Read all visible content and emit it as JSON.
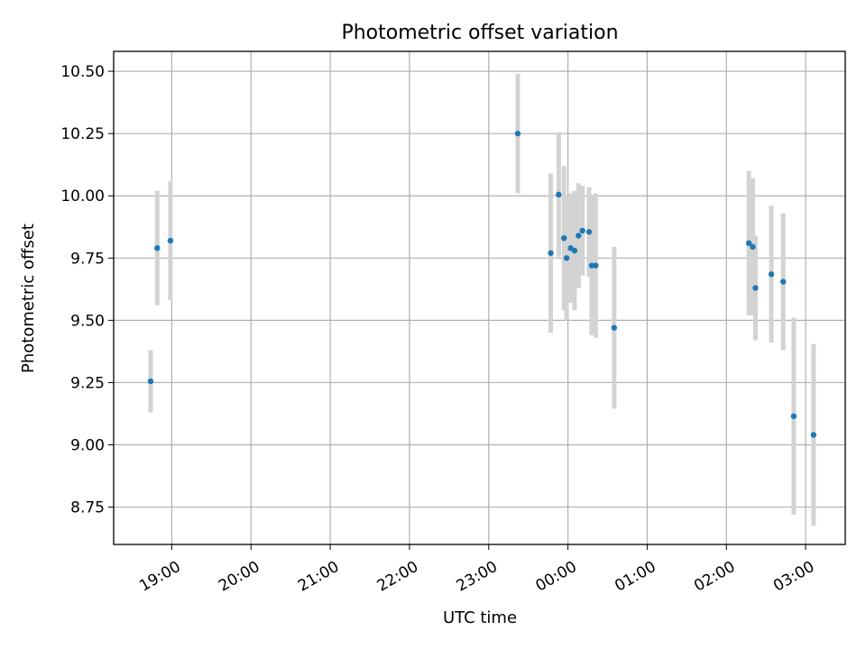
{
  "chart_data": {
    "type": "scatter",
    "title": "Photometric offset variation",
    "xlabel": "UTC time",
    "ylabel": "Photometric offset",
    "x_unit": "hours (UTC)",
    "xlim": [
      "18:16",
      "03:30"
    ],
    "ylim": [
      8.6,
      10.58
    ],
    "x_ticks": [
      "19:00",
      "20:00",
      "21:00",
      "22:00",
      "23:00",
      "00:00",
      "01:00",
      "02:00",
      "03:00"
    ],
    "y_ticks": [
      "8.75",
      "9.00",
      "9.25",
      "9.50",
      "9.75",
      "10.00",
      "10.25",
      "10.50"
    ],
    "grid": true,
    "legend": "none",
    "colors": {
      "point": "#1f77b4",
      "error_bar": "#d3d3d3"
    },
    "series": [
      {
        "points": [
          {
            "x": "18:44",
            "y": 9.255,
            "err": 0.125
          },
          {
            "x": "18:49",
            "y": 9.79,
            "err": 0.23
          },
          {
            "x": "18:59",
            "y": 9.82,
            "err": 0.24
          },
          {
            "x": "23:22",
            "y": 10.25,
            "err": 0.24
          },
          {
            "x": "23:47",
            "y": 9.77,
            "err": 0.32
          },
          {
            "x": "23:53",
            "y": 10.005,
            "err": 0.25
          },
          {
            "x": "23:57",
            "y": 9.83,
            "err": 0.29
          },
          {
            "x": "23:59",
            "y": 9.75,
            "err": 0.25
          },
          {
            "x": "00:02",
            "y": 9.79,
            "err": 0.22
          },
          {
            "x": "00:05",
            "y": 9.78,
            "err": 0.24
          },
          {
            "x": "00:08",
            "y": 9.84,
            "err": 0.21
          },
          {
            "x": "00:11",
            "y": 9.86,
            "err": 0.18
          },
          {
            "x": "00:16",
            "y": 9.855,
            "err": 0.18
          },
          {
            "x": "00:18",
            "y": 9.72,
            "err": 0.28
          },
          {
            "x": "00:21",
            "y": 9.72,
            "err": 0.29
          },
          {
            "x": "00:35",
            "y": 9.47,
            "err": 0.325
          },
          {
            "x": "02:17",
            "y": 9.81,
            "err": 0.29
          },
          {
            "x": "02:20",
            "y": 9.795,
            "err": 0.275
          },
          {
            "x": "02:22",
            "y": 9.63,
            "err": 0.21
          },
          {
            "x": "02:34",
            "y": 9.685,
            "err": 0.275
          },
          {
            "x": "02:43",
            "y": 9.655,
            "err": 0.275
          },
          {
            "x": "02:51",
            "y": 9.115,
            "err": 0.395
          },
          {
            "x": "03:06",
            "y": 9.04,
            "err": 0.365
          }
        ]
      }
    ]
  }
}
